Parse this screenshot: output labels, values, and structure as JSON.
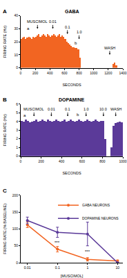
{
  "chart_data": [
    {
      "type": "bar",
      "panel": "A",
      "title": "GABA",
      "x_label": "SECONDS",
      "y_label": "FIRING RATE (Hz)",
      "x": [
        10,
        30,
        50,
        70,
        90,
        110,
        130,
        150,
        170,
        190,
        210,
        230,
        250,
        270,
        290,
        310,
        330,
        350,
        370,
        390,
        410,
        430,
        450,
        470,
        490,
        510,
        530,
        550,
        570,
        590,
        610,
        630,
        650,
        670,
        690,
        710,
        730,
        750,
        770,
        790,
        810,
        830,
        850,
        870,
        890,
        910,
        930,
        950,
        970,
        990,
        1010,
        1030,
        1050,
        1070,
        1090,
        1110,
        1130,
        1150,
        1170,
        1190,
        1210,
        1230,
        1250,
        1270,
        1290,
        1310,
        1330,
        1350,
        1370,
        1390
      ],
      "values": [
        22,
        23,
        24,
        22,
        23,
        24,
        23,
        22,
        24,
        23,
        24,
        25,
        26,
        24,
        25,
        26,
        25,
        24,
        26,
        25,
        24,
        25,
        26,
        25,
        24,
        25,
        26,
        24,
        25,
        24,
        22,
        20,
        19,
        18,
        17,
        16,
        16,
        15,
        15,
        14,
        8,
        0,
        0,
        0,
        0,
        0,
        0,
        0,
        0,
        0,
        0,
        0,
        0,
        0,
        0,
        0,
        0,
        0,
        0,
        0,
        0,
        0,
        0,
        3,
        4,
        2,
        0,
        0,
        0,
        0
      ],
      "color": "#f26522",
      "xlim": [
        0,
        1400
      ],
      "ylim": [
        0,
        40
      ],
      "xticks": [
        0,
        200,
        400,
        600,
        800,
        1000,
        1200,
        1400
      ],
      "yticks": [
        0,
        10,
        20,
        30,
        40
      ],
      "annotations": [
        {
          "text": "MUSCIMOL",
          "x": 230,
          "y": 30
        },
        {
          "text": "0.01",
          "x": 440,
          "y": 30
        },
        {
          "text": "0.1",
          "x": 640,
          "y": 26
        },
        {
          "text": "1.0",
          "x": 800,
          "y": 22
        },
        {
          "text": "WASH",
          "x": 1220,
          "y": 10
        }
      ],
      "labels": [
        {
          "text": "a",
          "x": 100,
          "y": 30
        },
        {
          "text": "b",
          "x": 760,
          "y": 19
        }
      ]
    },
    {
      "type": "bar",
      "panel": "B",
      "title": "DOPAMINE",
      "x_label": "SECONDS",
      "y_label": "FIRING RATE (Hz)",
      "x": [
        10,
        30,
        50,
        70,
        90,
        110,
        130,
        150,
        170,
        190,
        210,
        230,
        250,
        270,
        290,
        310,
        330,
        350,
        370,
        390,
        410,
        430,
        450,
        470,
        490,
        510,
        530,
        550,
        570,
        590,
        610,
        630,
        650,
        670,
        690,
        710,
        730,
        750,
        770,
        790,
        810,
        830,
        850,
        870,
        890,
        910,
        930,
        950,
        970,
        990
      ],
      "values": [
        4.1,
        4.0,
        4.2,
        4.1,
        3.9,
        4.0,
        4.1,
        4.2,
        4.0,
        4.1,
        4.2,
        4.1,
        4.0,
        4.2,
        4.1,
        4.0,
        4.1,
        4.2,
        4.1,
        4.0,
        4.1,
        4.2,
        4.0,
        4.1,
        4.2,
        4.1,
        4.0,
        4.1,
        4.2,
        4.1,
        4.0,
        4.1,
        4.2,
        4.1,
        4.0,
        4.1,
        4.2,
        4.1,
        4.0,
        4.1,
        4.1,
        2.0,
        0,
        0,
        1.0,
        3.5,
        3.8,
        3.9,
        4.0,
        3.9
      ],
      "color": "#5b3a99",
      "xlim": [
        0,
        1000
      ],
      "ylim": [
        0,
        6
      ],
      "xticks": [
        0,
        200,
        400,
        600,
        800,
        1000
      ],
      "yticks": [
        0,
        1,
        2,
        3,
        4,
        5,
        6
      ],
      "annotations": [
        {
          "text": "MUSCIMOL",
          "x": 130,
          "y": 4.6
        },
        {
          "text": "0.01",
          "x": 300,
          "y": 4.6
        },
        {
          "text": "0.1",
          "x": 460,
          "y": 4.6
        },
        {
          "text": "1.0",
          "x": 640,
          "y": 4.6
        },
        {
          "text": "10.0",
          "x": 810,
          "y": 4.6
        },
        {
          "text": "WASH",
          "x": 930,
          "y": 4.6
        }
      ],
      "labels": [
        {
          "text": "a",
          "x": 40,
          "y": 4.7
        },
        {
          "text": "b",
          "x": 560,
          "y": 4.8
        }
      ]
    },
    {
      "type": "line",
      "panel": "C",
      "x_label": "[MUSCIMOL]",
      "y_label": "FIRING RATE (% BASELINE)",
      "log": "x",
      "x": [
        0.01,
        0.1,
        1,
        10
      ],
      "series": [
        {
          "name": "GABA NEURONS",
          "color": "#f26522",
          "marker": "circle",
          "values": [
            112,
            40,
            10,
            5
          ],
          "error": [
            8,
            8,
            5,
            3
          ]
        },
        {
          "name": "DOPAMINE NEURONS",
          "color": "#5b3a99",
          "marker": "circle",
          "values": [
            125,
            90,
            85,
            0
          ],
          "error": [
            10,
            15,
            35,
            0
          ]
        }
      ],
      "xlim": [
        0.006,
        15
      ],
      "ylim": [
        0,
        200
      ],
      "xticks": [
        0.01,
        0.1,
        1,
        10
      ],
      "yticks": [
        0,
        50,
        100,
        150,
        200
      ],
      "legend": "top right",
      "labels": [
        {
          "text": "***",
          "x": 0.1,
          "y": 60
        },
        {
          "text": "***",
          "x": 1,
          "y": 32
        }
      ]
    }
  ]
}
